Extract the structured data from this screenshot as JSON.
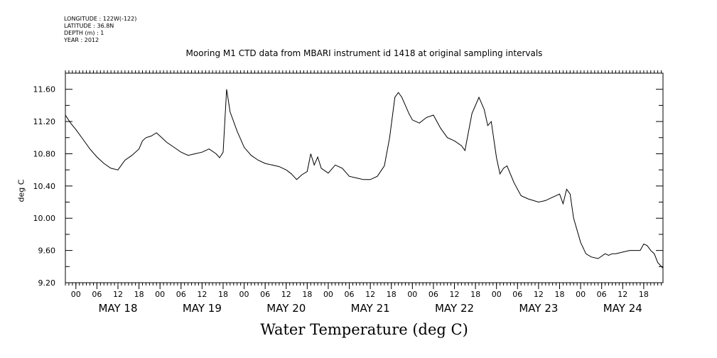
{
  "meta": {
    "lines": [
      "LONGITUDE : 122W(-122)",
      "LATITUDE : 36.8N",
      "DEPTH (m) : 1",
      "YEAR : 2012"
    ]
  },
  "chart_data": {
    "type": "line",
    "title": "Mooring M1 CTD data from MBARI instrument id 1418 at original sampling intervals",
    "xlabel": "Water Temperature (deg C)",
    "ylabel": "deg C",
    "xlim": [
      "2012-05-17T21:00",
      "2012-05-24T23:30"
    ],
    "ylim": [
      9.2,
      11.8
    ],
    "yticks": [
      "9.20",
      "9.60",
      "10.00",
      "10.40",
      "10.80",
      "11.20",
      "11.60"
    ],
    "xtick_hours": [
      "00",
      "06",
      "12",
      "18"
    ],
    "day_labels": [
      "MAY 18",
      "MAY 19",
      "MAY 20",
      "MAY 21",
      "MAY 22",
      "MAY 23",
      "MAY 24"
    ],
    "grid": false,
    "color": "#000000",
    "series": [
      {
        "x": [
          "2012-05-17T21:00",
          "2012-05-17T22:30",
          "2012-05-18T00:00",
          "2012-05-18T02:00",
          "2012-05-18T04:00",
          "2012-05-18T06:00",
          "2012-05-18T08:00",
          "2012-05-18T10:00",
          "2012-05-18T12:00",
          "2012-05-18T13:00",
          "2012-05-18T14:00",
          "2012-05-18T16:00",
          "2012-05-18T18:00",
          "2012-05-18T19:00",
          "2012-05-18T20:00",
          "2012-05-18T21:30",
          "2012-05-18T23:00",
          "2012-05-19T00:30",
          "2012-05-19T02:00",
          "2012-05-19T04:00",
          "2012-05-19T06:00",
          "2012-05-19T08:00",
          "2012-05-19T10:00",
          "2012-05-19T12:00",
          "2012-05-19T14:00",
          "2012-05-19T16:00",
          "2012-05-19T17:00",
          "2012-05-19T18:00",
          "2012-05-19T19:00",
          "2012-05-19T20:00",
          "2012-05-19T22:00",
          "2012-05-20T00:00",
          "2012-05-20T02:00",
          "2012-05-20T04:00",
          "2012-05-20T06:00",
          "2012-05-20T08:00",
          "2012-05-20T10:00",
          "2012-05-20T12:00",
          "2012-05-20T13:30",
          "2012-05-20T15:00",
          "2012-05-20T16:30",
          "2012-05-20T18:00",
          "2012-05-20T19:00",
          "2012-05-20T20:00",
          "2012-05-20T21:00",
          "2012-05-20T22:00",
          "2012-05-21T00:00",
          "2012-05-21T02:00",
          "2012-05-21T04:00",
          "2012-05-21T06:00",
          "2012-05-21T08:00",
          "2012-05-21T10:00",
          "2012-05-21T12:00",
          "2012-05-21T14:00",
          "2012-05-21T16:00",
          "2012-05-21T17:30",
          "2012-05-21T19:00",
          "2012-05-21T20:00",
          "2012-05-21T21:00",
          "2012-05-21T22:00",
          "2012-05-21T23:00",
          "2012-05-22T00:00",
          "2012-05-22T02:00",
          "2012-05-22T04:00",
          "2012-05-22T06:00",
          "2012-05-22T07:00",
          "2012-05-22T08:00",
          "2012-05-22T10:00",
          "2012-05-22T12:00",
          "2012-05-22T14:00",
          "2012-05-22T15:00",
          "2012-05-22T17:00",
          "2012-05-22T19:00",
          "2012-05-22T20:30",
          "2012-05-22T21:30",
          "2012-05-22T22:30",
          "2012-05-23T00:00",
          "2012-05-23T01:00",
          "2012-05-23T02:00",
          "2012-05-23T03:00",
          "2012-05-23T05:00",
          "2012-05-23T07:00",
          "2012-05-23T09:00",
          "2012-05-23T12:00",
          "2012-05-23T14:00",
          "2012-05-23T16:00",
          "2012-05-23T18:00",
          "2012-05-23T19:00",
          "2012-05-23T20:00",
          "2012-05-23T21:00",
          "2012-05-23T22:00",
          "2012-05-24T00:00",
          "2012-05-24T01:30",
          "2012-05-24T03:00",
          "2012-05-24T05:00",
          "2012-05-24T07:00",
          "2012-05-24T08:00",
          "2012-05-24T09:00",
          "2012-05-24T10:00",
          "2012-05-24T12:00",
          "2012-05-24T14:00",
          "2012-05-24T16:00",
          "2012-05-24T17:00",
          "2012-05-24T18:00",
          "2012-05-24T19:00",
          "2012-05-24T20:00",
          "2012-05-24T21:00",
          "2012-05-24T22:00",
          "2012-05-24T23:30"
        ],
        "y": [
          11.28,
          11.18,
          11.1,
          10.98,
          10.86,
          10.76,
          10.68,
          10.62,
          10.6,
          10.66,
          10.72,
          10.78,
          10.86,
          10.96,
          11.0,
          11.02,
          11.06,
          11.0,
          10.94,
          10.88,
          10.82,
          10.78,
          10.8,
          10.82,
          10.86,
          10.8,
          10.75,
          10.82,
          11.6,
          11.32,
          11.08,
          10.88,
          10.78,
          10.72,
          10.68,
          10.66,
          10.64,
          10.6,
          10.55,
          10.48,
          10.54,
          10.58,
          10.8,
          10.66,
          10.76,
          10.62,
          10.56,
          10.66,
          10.62,
          10.52,
          10.5,
          10.48,
          10.48,
          10.52,
          10.65,
          11.0,
          11.5,
          11.56,
          11.5,
          11.4,
          11.3,
          11.22,
          11.18,
          11.25,
          11.28,
          11.2,
          11.12,
          11.0,
          10.96,
          10.9,
          10.84,
          11.3,
          11.5,
          11.35,
          11.15,
          11.2,
          10.75,
          10.55,
          10.62,
          10.65,
          10.44,
          10.28,
          10.24,
          10.2,
          10.22,
          10.26,
          10.3,
          10.18,
          10.36,
          10.3,
          10.0,
          9.7,
          9.56,
          9.52,
          9.5,
          9.56,
          9.54,
          9.56,
          9.56,
          9.58,
          9.6,
          9.6,
          9.6,
          9.68,
          9.66,
          9.6,
          9.56,
          9.45,
          9.38
        ]
      }
    ]
  }
}
